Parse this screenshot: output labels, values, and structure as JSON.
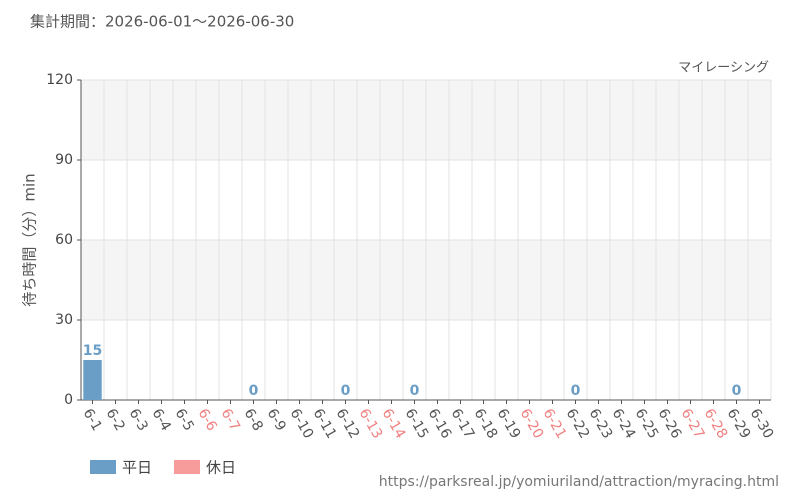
{
  "chart_data": {
    "type": "bar",
    "title": "集計期間：2026-06-01～2026-06-30",
    "subtitle": "マイレーシング",
    "y_label": "待ち時間（分）min",
    "source": "https://parksreal.jp/yomiuriland/attraction/myracing.html",
    "categories": [
      "6-1",
      "6-2",
      "6-3",
      "6-4",
      "6-5",
      "6-6",
      "6-7",
      "6-8",
      "6-9",
      "6-10",
      "6-11",
      "6-12",
      "6-13",
      "6-14",
      "6-15",
      "6-16",
      "6-17",
      "6-18",
      "6-19",
      "6-20",
      "6-21",
      "6-22",
      "6-23",
      "6-24",
      "6-25",
      "6-26",
      "6-27",
      "6-28",
      "6-29",
      "6-30"
    ],
    "category_label_colors": [
      "#555",
      "#555",
      "#555",
      "#555",
      "#555",
      "#f08080",
      "#f08080",
      "#555",
      "#555",
      "#555",
      "#555",
      "#555",
      "#f08080",
      "#f08080",
      "#555",
      "#555",
      "#555",
      "#555",
      "#555",
      "#f08080",
      "#f08080",
      "#555",
      "#555",
      "#555",
      "#555",
      "#555",
      "#f08080",
      "#f08080",
      "#555",
      "#555"
    ],
    "series": [
      {
        "name": "平日",
        "color": "#6a9ec6",
        "values": [
          15,
          null,
          null,
          null,
          null,
          null,
          null,
          0,
          null,
          null,
          null,
          0,
          null,
          null,
          0,
          null,
          null,
          null,
          null,
          null,
          null,
          0,
          null,
          null,
          null,
          null,
          null,
          null,
          0,
          null
        ]
      },
      {
        "name": "休日",
        "color": "#f79b9b",
        "values": [
          null,
          null,
          null,
          null,
          null,
          null,
          null,
          null,
          null,
          null,
          null,
          null,
          null,
          null,
          null,
          null,
          null,
          null,
          null,
          null,
          null,
          null,
          null,
          null,
          null,
          null,
          null,
          null,
          null,
          null
        ]
      }
    ],
    "ylim": [
      0,
      120
    ],
    "yticks": [
      0,
      30,
      60,
      90,
      120
    ],
    "grid": true
  }
}
